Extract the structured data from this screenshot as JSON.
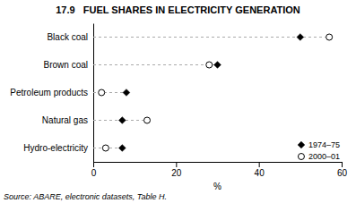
{
  "chart_data": {
    "type": "dot",
    "orientation": "horizontal",
    "title": "17.9   FUEL SHARES IN ELECTRICITY GENERATION",
    "categories": [
      "Black coal",
      "Brown coal",
      "Petroleum products",
      "Natural gas",
      "Hydro-electricity"
    ],
    "series": [
      {
        "name": "1974–75",
        "color": "black",
        "marker": "diamond",
        "values": [
          50,
          30,
          8,
          7,
          7
        ]
      },
      {
        "name": "2000–01",
        "color": "black",
        "marker": "open-circle",
        "values": [
          57,
          28,
          2,
          13,
          3
        ]
      }
    ],
    "x_label": "%",
    "xlim": [
      0,
      60
    ],
    "xticks": [
      0,
      20,
      40,
      60
    ],
    "grid": false,
    "legend": "lower right",
    "annotations": [
      "Source: ABARE, electronic datasets, Table H."
    ]
  }
}
